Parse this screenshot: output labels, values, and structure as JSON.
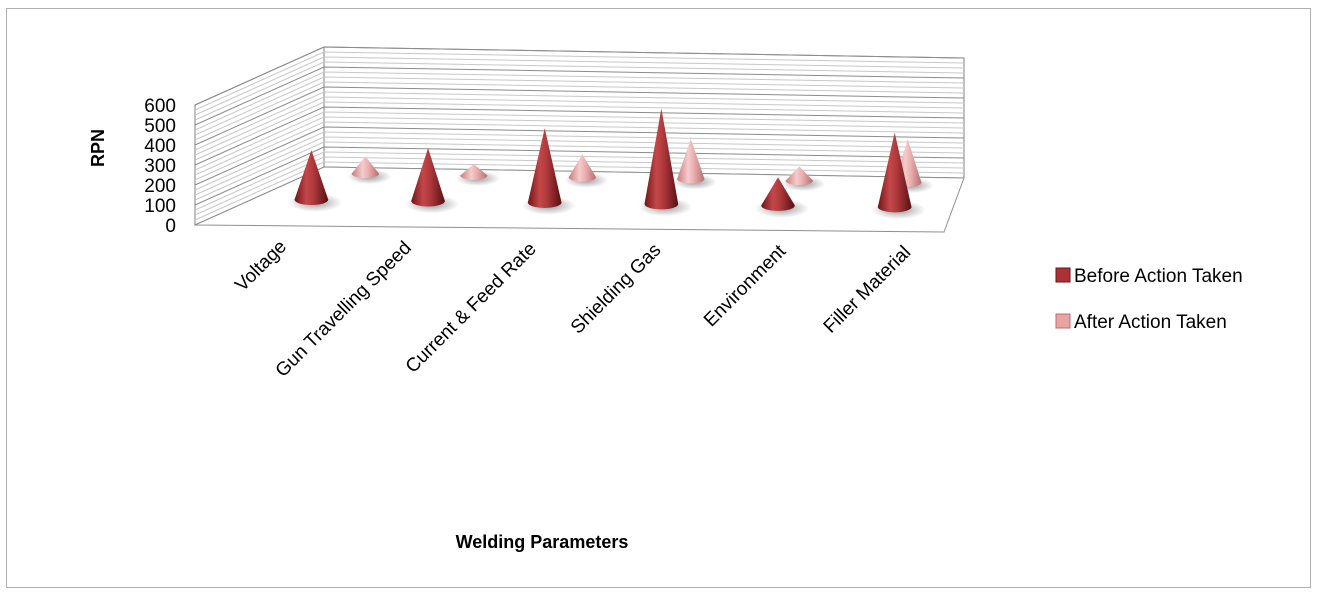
{
  "chart_data": {
    "type": "bar",
    "subtype": "3d-cone",
    "title": "",
    "xlabel": "Welding Parameters",
    "ylabel": "RPN",
    "ylim": [
      0,
      600
    ],
    "yticks": [
      "0",
      "100",
      "200",
      "300",
      "400",
      "500",
      "600"
    ],
    "categories": [
      "Voltage",
      "Gun Travelling Speed",
      "Current & Feed Rate",
      "Shielding Gas",
      "Environment",
      "Filler Material"
    ],
    "series": [
      {
        "name": "Before Action Taken",
        "values": [
          280,
          300,
          420,
          540,
          160,
          420
        ],
        "color": "#a83236"
      },
      {
        "name": "After Action Taken",
        "values": [
          120,
          80,
          160,
          280,
          100,
          300
        ],
        "color": "#e8a3a3"
      }
    ],
    "grid": true,
    "legend_position": "right"
  }
}
